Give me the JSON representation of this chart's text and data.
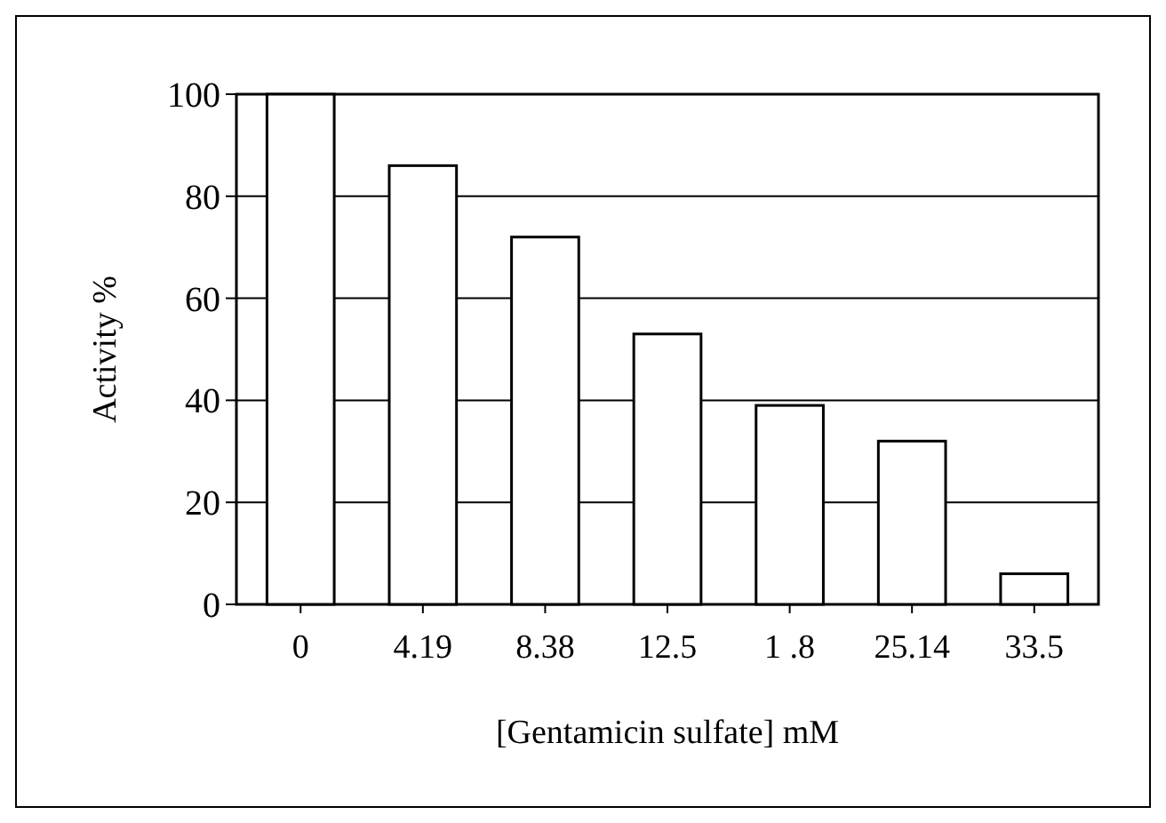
{
  "chart_data": {
    "type": "bar",
    "xlabel": "[Gentamicin sulfate] mM",
    "ylabel": "Activity %",
    "categories": [
      "0",
      "4.19",
      "8.38",
      "12.5",
      "1 .8",
      "25.14",
      "33.5"
    ],
    "values": [
      100,
      86,
      72,
      53,
      39,
      32,
      6
    ],
    "color": "#ffffff",
    "ylim": [
      0,
      100
    ],
    "yticks": [
      0,
      20,
      40,
      60,
      80,
      100
    ],
    "grid": "y"
  }
}
